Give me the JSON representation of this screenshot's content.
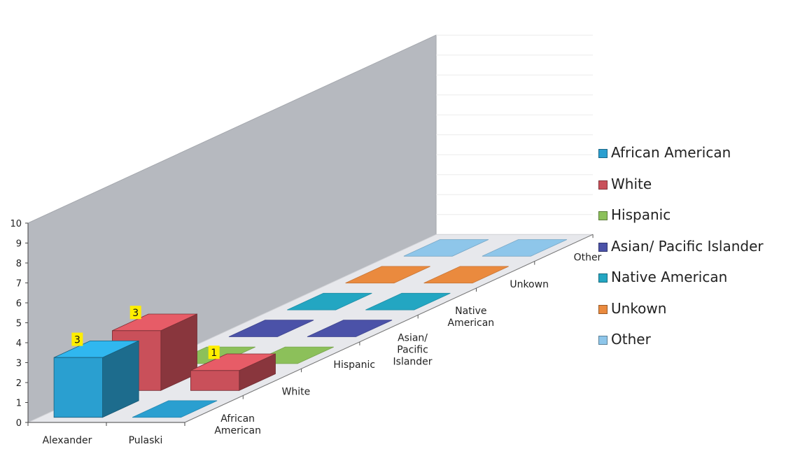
{
  "chart_data": {
    "type": "bar",
    "categories": [
      "Alexander",
      "Pulaski"
    ],
    "series": [
      {
        "name": "African American",
        "values": [
          3,
          0
        ]
      },
      {
        "name": "White",
        "values": [
          3,
          1
        ]
      },
      {
        "name": "Hispanic",
        "values": [
          0,
          0
        ]
      },
      {
        "name": "Asian/ Pacific Islander",
        "values": [
          0,
          0
        ]
      },
      {
        "name": "Native American",
        "values": [
          0,
          0
        ]
      },
      {
        "name": "Unkown",
        "values": [
          0,
          0
        ]
      },
      {
        "name": "Other",
        "values": [
          0,
          0
        ]
      }
    ],
    "depth_labels": [
      "African American",
      "White",
      "Hispanic",
      "Asian/ Pacific Islander",
      "Native American",
      "Unkown",
      "Other"
    ],
    "data_labels": [
      {
        "category": "Alexander",
        "series": "African American",
        "value": "3"
      },
      {
        "category": "Alexander",
        "series": "White",
        "value": "3"
      },
      {
        "category": "Pulaski",
        "series": "White",
        "value": "1"
      }
    ],
    "ylim": [
      0,
      10
    ],
    "yticks": [
      "0",
      "1",
      "2",
      "3",
      "4",
      "5",
      "6",
      "7",
      "8",
      "9",
      "10"
    ],
    "projection": "3d-columns",
    "legend_position": "right",
    "colors": {
      "African American": "#2a9fd0",
      "White": "#c9505a",
      "Hispanic": "#8cc05a",
      "Asian/ Pacific Islander": "#4b52a8",
      "Native American": "#23a6c2",
      "Unkown": "#ea8a3e",
      "Other": "#8ec6ea"
    },
    "label_bg": "#ffee00",
    "title": "",
    "xlabel": "",
    "ylabel": ""
  }
}
